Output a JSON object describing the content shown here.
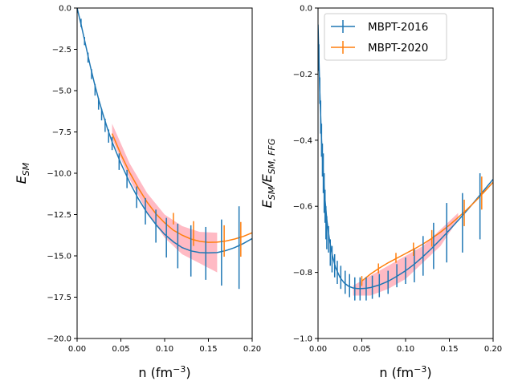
{
  "chart_data": [
    {
      "type": "line",
      "xlabel_main": "n (fm",
      "xlabel_sup": "−3",
      "xlabel_close": ")",
      "ylabel_main": "E",
      "ylabel_sub": "SM",
      "xlim": [
        0,
        0.2
      ],
      "ylim": [
        -20,
        0
      ],
      "xticks": [
        0.0,
        0.05,
        0.1,
        0.15,
        0.2
      ],
      "xtick_labels": [
        "0.00",
        "0.05",
        "0.10",
        "0.15",
        "0.20"
      ],
      "yticks": [
        0,
        -2.5,
        -5,
        -7.5,
        -10,
        -12.5,
        -15,
        -17.5,
        -20
      ],
      "ytick_labels": [
        "0.0",
        "−2.5",
        "−5.0",
        "−7.5",
        "−10.0",
        "−12.5",
        "−15.0",
        "−17.5",
        "−20.0"
      ],
      "series": [
        {
          "name": "MBPT-2016",
          "color": "#1f77b4",
          "x": [
            0.0,
            0.005,
            0.01,
            0.015,
            0.02,
            0.025,
            0.03,
            0.035,
            0.04,
            0.05,
            0.06,
            0.07,
            0.08,
            0.09,
            0.1,
            0.11,
            0.12,
            0.13,
            0.14,
            0.15,
            0.16,
            0.17,
            0.18,
            0.19,
            0.2
          ],
          "y": [
            0.0,
            -1.1,
            -2.3,
            -3.5,
            -4.6,
            -5.6,
            -6.5,
            -7.35,
            -8.1,
            -9.4,
            -10.55,
            -11.55,
            -12.4,
            -13.1,
            -13.7,
            -14.15,
            -14.5,
            -14.7,
            -14.8,
            -14.82,
            -14.8,
            -14.68,
            -14.5,
            -14.25,
            -13.95
          ]
        },
        {
          "name": "MBPT-2020",
          "color": "#ff7f0e",
          "x": [
            0.04,
            0.05,
            0.06,
            0.07,
            0.08,
            0.09,
            0.1,
            0.11,
            0.12,
            0.13,
            0.14,
            0.15,
            0.16,
            0.17,
            0.18,
            0.19,
            0.2
          ],
          "y": [
            -7.6,
            -8.85,
            -9.95,
            -10.9,
            -11.75,
            -12.45,
            -13.0,
            -13.45,
            -13.75,
            -13.98,
            -14.12,
            -14.18,
            -14.17,
            -14.1,
            -13.98,
            -13.82,
            -13.6
          ]
        }
      ],
      "band": {
        "color": "#ffb6c1",
        "x": [
          0.04,
          0.06,
          0.08,
          0.1,
          0.12,
          0.14,
          0.16
        ],
        "lower": [
          -7.9,
          -10.35,
          -12.35,
          -13.9,
          -14.9,
          -15.45,
          -16.0
        ],
        "upper": [
          -7.0,
          -9.4,
          -11.2,
          -12.5,
          -13.2,
          -13.55,
          -13.6
        ]
      },
      "errorbars": [
        {
          "series": 0,
          "x": [
            0.0,
            0.0045,
            0.0085,
            0.0125,
            0.0165,
            0.0205,
            0.0245,
            0.028,
            0.032,
            0.036,
            0.04,
            0.048,
            0.057,
            0.068,
            0.078,
            0.09,
            0.102,
            0.115,
            0.13,
            0.147,
            0.165,
            0.185
          ],
          "y": [
            0.0,
            -0.9,
            -2.0,
            -3.0,
            -4.0,
            -4.95,
            -5.8,
            -6.45,
            -7.1,
            -7.75,
            -8.2,
            -9.3,
            -10.35,
            -11.45,
            -12.3,
            -13.2,
            -13.9,
            -14.4,
            -14.7,
            -14.85,
            -14.8,
            -14.5
          ],
          "err": [
            0.2,
            0.25,
            0.25,
            0.3,
            0.3,
            0.35,
            0.35,
            0.35,
            0.4,
            0.4,
            0.4,
            0.5,
            0.55,
            0.65,
            0.8,
            1.0,
            1.2,
            1.35,
            1.55,
            1.6,
            2.0,
            2.5
          ]
        },
        {
          "series": 1,
          "x": [
            0.11,
            0.133,
            0.168,
            0.187
          ],
          "y": [
            -12.75,
            -13.65,
            -14.1,
            -14.0
          ],
          "err": [
            0.35,
            0.75,
            0.95,
            1.05
          ]
        }
      ]
    },
    {
      "type": "line",
      "xlabel_main": "n (fm",
      "xlabel_sup": "−3",
      "xlabel_close": ")",
      "ylabel_main": "E",
      "ylabel_sub": "SM",
      "ylabel_mid": "/E",
      "ylabel_sub2": "SM, FFG",
      "xlim": [
        0,
        0.2
      ],
      "ylim": [
        -1.0,
        0.0
      ],
      "xticks": [
        0.0,
        0.05,
        0.1,
        0.15,
        0.2
      ],
      "xtick_labels": [
        "0.00",
        "0.05",
        "0.10",
        "0.15",
        "0.20"
      ],
      "yticks": [
        0.0,
        -0.2,
        -0.4,
        -0.6,
        -0.8,
        -1.0
      ],
      "ytick_labels": [
        "0.0",
        "−0.2",
        "−0.4",
        "−0.6",
        "−0.8",
        "−1.0"
      ],
      "legend_position": "top-left",
      "series": [
        {
          "name": "MBPT-2016",
          "color": "#1f77b4",
          "x": [
            0.0,
            0.002,
            0.004,
            0.006,
            0.008,
            0.01,
            0.013,
            0.016,
            0.02,
            0.025,
            0.03,
            0.035,
            0.04,
            0.045,
            0.05,
            0.055,
            0.06,
            0.065,
            0.07,
            0.08,
            0.09,
            0.1,
            0.11,
            0.12,
            0.13,
            0.14,
            0.15,
            0.16,
            0.17,
            0.18,
            0.19,
            0.2
          ],
          "y": [
            -0.05,
            -0.25,
            -0.4,
            -0.5,
            -0.58,
            -0.64,
            -0.7,
            -0.745,
            -0.785,
            -0.815,
            -0.832,
            -0.842,
            -0.847,
            -0.849,
            -0.849,
            -0.848,
            -0.846,
            -0.842,
            -0.838,
            -0.827,
            -0.812,
            -0.795,
            -0.775,
            -0.752,
            -0.727,
            -0.7,
            -0.672,
            -0.643,
            -0.613,
            -0.582,
            -0.55,
            -0.518
          ]
        },
        {
          "name": "MBPT-2020",
          "color": "#ff7f0e",
          "x": [
            0.05,
            0.06,
            0.07,
            0.08,
            0.09,
            0.1,
            0.11,
            0.12,
            0.13,
            0.14,
            0.15,
            0.16,
            0.17,
            0.18,
            0.19,
            0.2
          ],
          "y": [
            -0.826,
            -0.805,
            -0.787,
            -0.771,
            -0.757,
            -0.743,
            -0.729,
            -0.714,
            -0.697,
            -0.678,
            -0.657,
            -0.634,
            -0.61,
            -0.584,
            -0.556,
            -0.527
          ]
        }
      ],
      "band": {
        "color": "#ffb6c1",
        "x": [
          0.04,
          0.06,
          0.08,
          0.1,
          0.12,
          0.14,
          0.16
        ],
        "lower": [
          -0.87,
          -0.87,
          -0.85,
          -0.82,
          -0.77,
          -0.72,
          -0.64
        ],
        "upper": [
          -0.84,
          -0.81,
          -0.78,
          -0.75,
          -0.72,
          -0.67,
          -0.62
        ]
      },
      "errorbars": [
        {
          "series": 0,
          "x": [
            0.001,
            0.002,
            0.003,
            0.004,
            0.005,
            0.006,
            0.007,
            0.008,
            0.009,
            0.01,
            0.012,
            0.014,
            0.016,
            0.019,
            0.022,
            0.026,
            0.031,
            0.036,
            0.042,
            0.048,
            0.055,
            0.062,
            0.07,
            0.08,
            0.09,
            0.1,
            0.11,
            0.12,
            0.132,
            0.147,
            0.165,
            0.185
          ],
          "y": [
            -0.15,
            -0.25,
            -0.33,
            -0.4,
            -0.46,
            -0.5,
            -0.56,
            -0.6,
            -0.65,
            -0.68,
            -0.7,
            -0.74,
            -0.76,
            -0.78,
            -0.8,
            -0.815,
            -0.83,
            -0.84,
            -0.85,
            -0.85,
            -0.85,
            -0.845,
            -0.84,
            -0.83,
            -0.81,
            -0.795,
            -0.78,
            -0.75,
            -0.72,
            -0.68,
            -0.65,
            -0.6
          ],
          "err": [
            0.04,
            0.04,
            0.05,
            0.05,
            0.05,
            0.06,
            0.06,
            0.05,
            0.05,
            0.05,
            0.04,
            0.04,
            0.04,
            0.035,
            0.035,
            0.035,
            0.035,
            0.035,
            0.035,
            0.035,
            0.035,
            0.035,
            0.035,
            0.035,
            0.035,
            0.04,
            0.05,
            0.06,
            0.07,
            0.09,
            0.09,
            0.1
          ]
        },
        {
          "series": 1,
          "x": [
            0.05,
            0.069,
            0.089,
            0.109,
            0.13,
            0.167,
            0.187
          ],
          "y": [
            -0.826,
            -0.788,
            -0.756,
            -0.73,
            -0.697,
            -0.62,
            -0.56
          ],
          "err": [
            0.015,
            0.015,
            0.015,
            0.02,
            0.025,
            0.04,
            0.05
          ]
        }
      ]
    }
  ],
  "legend": {
    "items": [
      {
        "label": "MBPT-2016",
        "color": "#1f77b4"
      },
      {
        "label": "MBPT-2020",
        "color": "#ff7f0e"
      }
    ]
  }
}
